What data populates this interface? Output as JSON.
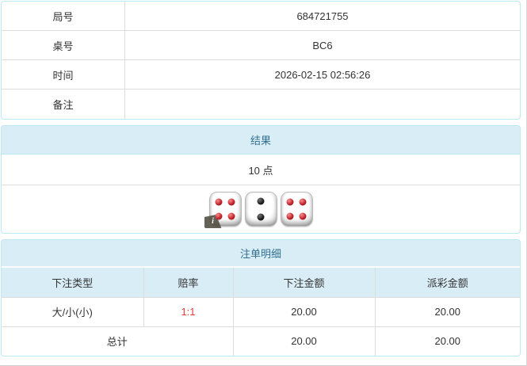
{
  "colors": {
    "panel_border": "#bce8f1",
    "heading_bg": "#d9edf7",
    "heading_text": "#31708f",
    "cell_border": "#dddddd",
    "body_text": "#333333",
    "odds_red": "#e23b3b",
    "pip_red": "#c2262d",
    "pip_black": "#1a1a1a"
  },
  "info_table": {
    "rows": [
      {
        "label": "局号",
        "value": "684721755"
      },
      {
        "label": "桌号",
        "value": "BC6"
      },
      {
        "label": "时间",
        "value": "2026-02-15 02:56:26"
      },
      {
        "label": "备注",
        "value": ""
      }
    ]
  },
  "result_panel": {
    "title": "结果",
    "points": "10 点",
    "dice": [
      {
        "value": 4,
        "pip_color": "red"
      },
      {
        "value": 2,
        "pip_color": "black"
      },
      {
        "value": 4,
        "pip_color": "red"
      }
    ],
    "info_badge": "i"
  },
  "bets_panel": {
    "title": "注单明细",
    "columns": [
      "下注类型",
      "赔率",
      "下注金额",
      "派彩金额"
    ],
    "rows": [
      {
        "type": "大/小(小)",
        "odds": "1:1",
        "bet": "20.00",
        "payout": "20.00"
      }
    ],
    "total": {
      "label": "总计",
      "bet": "20.00",
      "payout": "20.00"
    }
  }
}
